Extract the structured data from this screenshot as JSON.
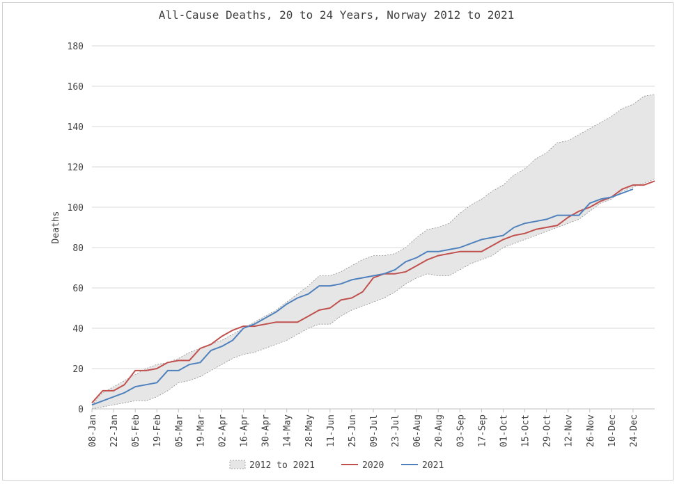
{
  "chart_data": {
    "type": "line",
    "title": "All-Cause Deaths, 20 to 24 Years, Norway 2012 to 2021",
    "xlabel": "",
    "ylabel": "Deaths",
    "ylim": [
      0,
      180
    ],
    "yticks": [
      0,
      20,
      40,
      60,
      80,
      100,
      120,
      140,
      160,
      180
    ],
    "grid": "horizontal",
    "legend_position": "bottom",
    "weeks": 53,
    "x_tick_labels": [
      "08-Jan",
      "22-Jan",
      "05-Feb",
      "19-Feb",
      "05-Mar",
      "19-Mar",
      "02-Apr",
      "16-Apr",
      "30-Apr",
      "14-May",
      "28-May",
      "11-Jun",
      "25-Jun",
      "09-Jul",
      "23-Jul",
      "06-Aug",
      "20-Aug",
      "03-Sep",
      "17-Sep",
      "01-Oct",
      "15-Oct",
      "29-Oct",
      "12-Nov",
      "26-Nov",
      "10-Dec",
      "24-Dec"
    ],
    "band": {
      "name": "2012 to 2021",
      "color": "#e6e6e6",
      "stroke": "#909090",
      "upper": [
        2,
        8,
        11,
        14,
        17,
        20,
        22,
        23,
        25,
        28,
        30,
        32,
        34,
        37,
        40,
        43,
        46,
        49,
        53,
        57,
        61,
        66,
        66,
        68,
        71,
        74,
        76,
        76,
        77,
        80,
        85,
        89,
        90,
        92,
        97,
        101,
        104,
        108,
        111,
        116,
        119,
        124,
        127,
        132,
        133,
        136,
        139,
        142,
        145,
        149,
        151,
        155,
        156
      ],
      "lower": [
        0,
        1,
        2,
        3,
        4,
        4,
        6,
        9,
        13,
        14,
        16,
        19,
        22,
        25,
        27,
        28,
        30,
        32,
        34,
        37,
        40,
        42,
        42,
        46,
        49,
        51,
        53,
        55,
        58,
        62,
        65,
        67,
        66,
        66,
        69,
        72,
        74,
        76,
        80,
        82,
        84,
        86,
        88,
        90,
        92,
        94,
        98,
        102,
        104,
        108,
        110,
        112,
        114
      ]
    },
    "series": [
      {
        "name": "2020",
        "color": "#c0504d",
        "values": [
          3,
          9,
          9,
          12,
          19,
          19,
          20,
          23,
          24,
          24,
          30,
          32,
          36,
          39,
          41,
          41,
          42,
          43,
          43,
          43,
          46,
          49,
          50,
          54,
          55,
          58,
          65,
          67,
          67,
          68,
          71,
          74,
          76,
          77,
          78,
          78,
          78,
          81,
          84,
          86,
          87,
          89,
          90,
          91,
          95,
          98,
          100,
          103,
          105,
          109,
          111,
          111,
          113
        ]
      },
      {
        "name": "2021",
        "color": "#4f81bd",
        "values": [
          2,
          4,
          6,
          8,
          11,
          12,
          13,
          19,
          19,
          22,
          23,
          29,
          31,
          34,
          40,
          42,
          45,
          48,
          52,
          55,
          57,
          61,
          61,
          62,
          64,
          65,
          66,
          67,
          69,
          73,
          75,
          78,
          78,
          79,
          80,
          82,
          84,
          85,
          86,
          90,
          92,
          93,
          94,
          96,
          96,
          96,
          102,
          104,
          105,
          107,
          109
        ]
      }
    ]
  }
}
